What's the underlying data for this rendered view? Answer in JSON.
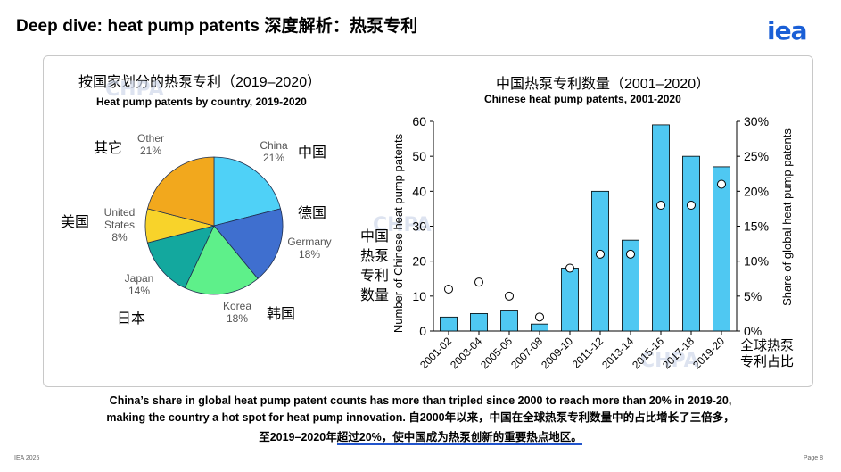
{
  "title": "Deep dive: heat pump patents 深度解析：热泵专利",
  "logo": "iea",
  "pie": {
    "title_cn": "按国家划分的热泵专利（2019–2020）",
    "title_en": "Heat pump patents by country, 2019-2020"
  },
  "bar": {
    "title_cn": "中国热泵专利数量（2001–2020）",
    "title_en": "Chinese heat pump patents, 2001-2020",
    "left_axis_cn": "中国热泵专利数量",
    "right_axis_cn": "全球热泵专利占比"
  },
  "chart_data": [
    {
      "type": "pie",
      "title": "Heat pump patents by country, 2019-2020",
      "slices": [
        {
          "name": "China",
          "name_cn": "中国",
          "value": 21,
          "label": "21%",
          "color": "#4fd1f7"
        },
        {
          "name": "Germany",
          "name_cn": "德国",
          "value": 18,
          "label": "18%",
          "color": "#3f6fcf"
        },
        {
          "name": "Korea",
          "name_cn": "韩国",
          "value": 18,
          "label": "18%",
          "color": "#5ef08a"
        },
        {
          "name": "Japan",
          "name_cn": "日本",
          "value": 14,
          "label": "14%",
          "color": "#13a89e"
        },
        {
          "name": "United States",
          "name_cn": "美国",
          "value": 8,
          "label": "8%",
          "color": "#f8d32a"
        },
        {
          "name": "Other",
          "name_cn": "其它",
          "value": 21,
          "label": "21%",
          "color": "#f2a81d"
        }
      ]
    },
    {
      "type": "bar",
      "title": "Chinese heat pump patents, 2001-2020",
      "categories": [
        "2001-02",
        "2003-04",
        "2005-06",
        "2007-08",
        "2009-10",
        "2011-12",
        "2013-14",
        "2015-16",
        "2017-18",
        "2019-20"
      ],
      "series": [
        {
          "name": "Number of Chinese heat pump patents",
          "axis": "left",
          "values": [
            4,
            5,
            6,
            2,
            18,
            40,
            26,
            59,
            50,
            47
          ],
          "color": "#4fc8f2"
        },
        {
          "name": "Share of global heat pump patents",
          "axis": "right",
          "values": [
            6,
            7,
            5,
            2,
            9,
            11,
            11,
            18,
            18,
            21
          ]
        }
      ],
      "ylabel": "Number of Chinese heat pump patents",
      "y2label": "Share of global heat pump patents",
      "ylim": [
        0,
        60
      ],
      "y2lim": [
        0,
        30
      ],
      "yticks": [
        "0",
        "10",
        "20",
        "30",
        "40",
        "50",
        "60"
      ],
      "y2ticks": [
        "0%",
        "5%",
        "10%",
        "15%",
        "20%",
        "25%",
        "30%"
      ]
    }
  ],
  "caption": {
    "line1": "China’s share in global heat pump patent counts has more than tripled since 2000 to reach more than 20% in 2019-20,",
    "line2": "making the country a hot spot for heat pump innovation.   自2000年以来，中国在全球热泵专利数量中的占比增长了三倍多，",
    "line3a": "至2019–2020年",
    "line3b": "超过20%，使中国成为热泵创新的",
    "line3c": "重要热点地区。"
  },
  "footer": {
    "left": "IEA 2025",
    "right": "Page 8"
  },
  "watermark": {
    "text": "CHPA",
    "sub": "中国节能协会热泵专业委员会"
  }
}
